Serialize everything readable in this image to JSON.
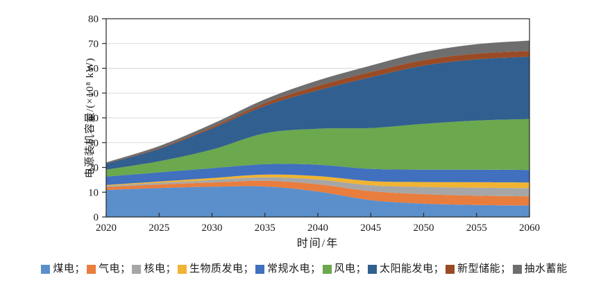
{
  "chart_data": {
    "type": "area",
    "stacked": true,
    "title": "",
    "xlabel": "时间/年",
    "ylabel": "电源装机容量/(×10⁸ kW)",
    "x": [
      2020,
      2025,
      2030,
      2035,
      2040,
      2045,
      2050,
      2055,
      2060
    ],
    "xlim": [
      2020,
      2060
    ],
    "ylim": [
      0,
      80
    ],
    "xticks": [
      "2020",
      "2025",
      "2030",
      "2035",
      "2040",
      "2045",
      "2050",
      "2055",
      "2060"
    ],
    "yticks": [
      "0",
      "10",
      "20",
      "30",
      "40",
      "50",
      "60",
      "70",
      "80"
    ],
    "grid": "horizontal-only",
    "legend_position": "bottom",
    "series": [
      {
        "name": "煤电",
        "color": "#5B8FCB",
        "values": [
          10.9,
          11.7,
          12.2,
          12.3,
          10.3,
          6.8,
          5.4,
          4.8,
          4.6
        ]
      },
      {
        "name": "气电",
        "color": "#E87D3D",
        "values": [
          1.2,
          1.4,
          1.7,
          2.3,
          2.9,
          3.6,
          3.8,
          3.8,
          3.7
        ]
      },
      {
        "name": "核电",
        "color": "#A6A6A6",
        "values": [
          0.5,
          0.7,
          1.0,
          1.4,
          1.9,
          2.4,
          2.9,
          3.2,
          3.3
        ]
      },
      {
        "name": "生物质发电",
        "color": "#F0B432",
        "values": [
          0.3,
          0.5,
          0.8,
          1.1,
          1.4,
          1.7,
          2.0,
          2.2,
          2.3
        ]
      },
      {
        "name": "常规水电",
        "color": "#4070BE",
        "values": [
          3.4,
          3.7,
          4.0,
          4.2,
          4.6,
          4.9,
          5.0,
          5.1,
          5.1
        ]
      },
      {
        "name": "风电",
        "color": "#6CA84D",
        "values": [
          2.8,
          4.5,
          7.5,
          12.5,
          14.5,
          16.5,
          18.5,
          19.8,
          20.5
        ]
      },
      {
        "name": "太阳能发电",
        "color": "#315F8F",
        "values": [
          2.5,
          5.0,
          8.5,
          11.0,
          15.5,
          20.5,
          23.5,
          24.7,
          25.2
        ]
      },
      {
        "name": "新型储能",
        "color": "#9A4B26",
        "values": [
          0.1,
          0.3,
          0.6,
          1.2,
          1.8,
          2.1,
          2.2,
          2.3,
          2.3
        ]
      },
      {
        "name": "抽水蓄能",
        "color": "#6E6E6E",
        "values": [
          0.3,
          0.8,
          1.2,
          1.5,
          2.2,
          2.6,
          3.2,
          3.8,
          4.2
        ]
      }
    ],
    "totals_by_year": [
      22.0,
      28.5,
      37.5,
      47.5,
      55.1,
      61.1,
      66.5,
      69.7,
      71.2
    ]
  },
  "legend": {
    "separator": "；"
  },
  "colors": {
    "background": "#FFFFFF",
    "gridline": "#D9D9D9",
    "axis": "#262626",
    "text": "#1A1A1A"
  }
}
